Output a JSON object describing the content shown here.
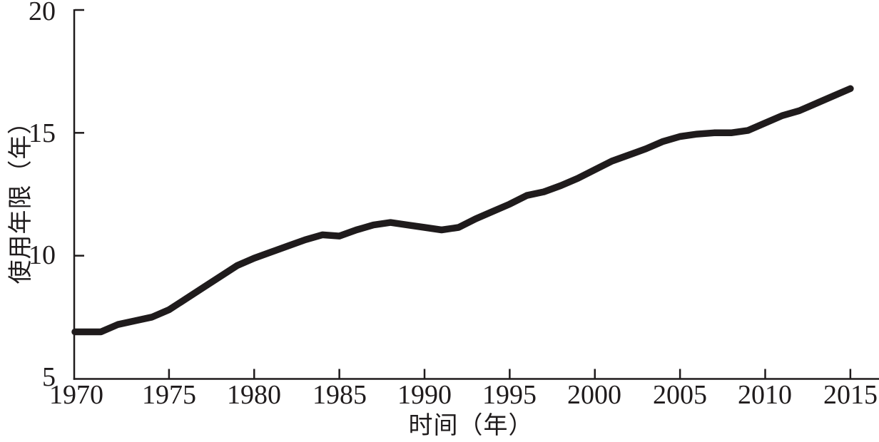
{
  "chart_data": {
    "type": "line",
    "title": "",
    "xlabel": "时间（年）",
    "ylabel": "使用年限（年）",
    "xlim": [
      1970,
      2015
    ],
    "ylim": [
      5,
      20
    ],
    "grid": false,
    "legend": false,
    "x_ticks": [
      1970,
      1975,
      1980,
      1985,
      1990,
      1995,
      2000,
      2005,
      2010,
      2015
    ],
    "x_tick_labels": [
      "1970",
      "1975",
      "1980",
      "1985",
      "1990",
      "1995",
      "2000",
      "2005",
      "2010",
      "2015"
    ],
    "y_ticks": [
      5,
      10,
      15,
      20
    ],
    "y_tick_labels": [
      "5",
      "10",
      "15",
      "20"
    ],
    "line_width": 9.5,
    "colors": {
      "line": "#1f1b1c",
      "axis": "#1f1b1c",
      "text": "#1f1b1c",
      "background": "#ffffff"
    },
    "series": [
      {
        "x": [
          1970,
          1971,
          1972,
          1973,
          1974,
          1975,
          1976,
          1977,
          1978,
          1979,
          1980,
          1981,
          1982,
          1983,
          1984,
          1985,
          1986,
          1987,
          1988,
          1989,
          1990,
          1991,
          1992,
          1993,
          1994,
          1995,
          1996,
          1997,
          1998,
          1999,
          2000,
          2001,
          2002,
          2003,
          2004,
          2005,
          2006,
          2007,
          2008,
          2009,
          2010,
          2011,
          2012,
          2013,
          2014,
          2015
        ],
        "values": [
          6.9,
          6.9,
          7.2,
          7.35,
          7.5,
          7.8,
          8.25,
          8.7,
          9.15,
          9.6,
          9.9,
          10.15,
          10.4,
          10.65,
          10.85,
          10.8,
          11.05,
          11.25,
          11.35,
          11.25,
          11.15,
          11.05,
          11.15,
          11.5,
          11.8,
          12.1,
          12.45,
          12.6,
          12.85,
          13.15,
          13.5,
          13.85,
          14.1,
          14.35,
          14.65,
          14.85,
          14.95,
          15.0,
          15.0,
          15.1,
          15.4,
          15.7,
          15.9,
          16.2,
          16.5,
          16.8
        ]
      }
    ]
  }
}
